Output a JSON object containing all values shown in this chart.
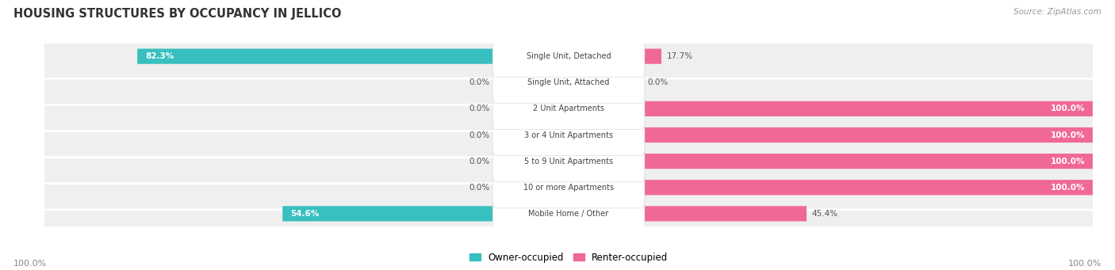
{
  "title": "HOUSING STRUCTURES BY OCCUPANCY IN JELLICO",
  "source": "Source: ZipAtlas.com",
  "categories": [
    "Single Unit, Detached",
    "Single Unit, Attached",
    "2 Unit Apartments",
    "3 or 4 Unit Apartments",
    "5 to 9 Unit Apartments",
    "10 or more Apartments",
    "Mobile Home / Other"
  ],
  "owner_pct": [
    82.3,
    0.0,
    0.0,
    0.0,
    0.0,
    0.0,
    54.6
  ],
  "renter_pct": [
    17.7,
    0.0,
    100.0,
    100.0,
    100.0,
    100.0,
    45.4
  ],
  "owner_color": "#38bfbf",
  "renter_color": "#f06898",
  "row_bg_color": "#efefef",
  "label_color_dark": "#555555",
  "label_color_white": "#ffffff",
  "title_color": "#333333",
  "owner_label": "Owner-occupied",
  "renter_label": "Renter-occupied",
  "axis_label_left": "100.0%",
  "axis_label_right": "100.0%",
  "fig_width": 14.06,
  "fig_height": 3.41,
  "dpi": 100
}
